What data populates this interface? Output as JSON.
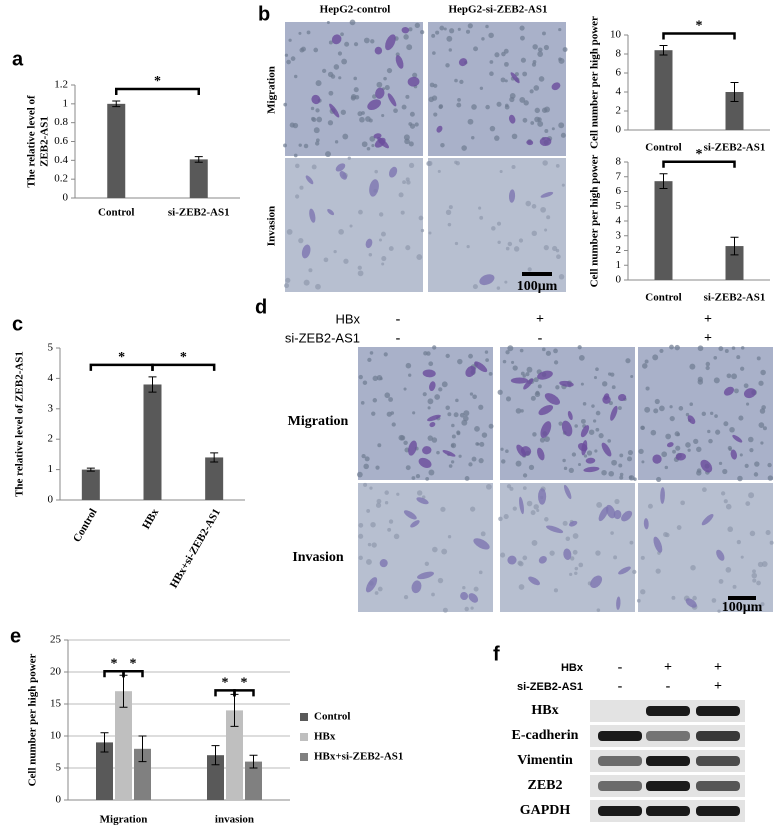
{
  "panel_labels": [
    "a",
    "b",
    "c",
    "d",
    "e",
    "f"
  ],
  "chart_data": [
    {
      "type": "bar",
      "ylabel": [
        "The relative level of",
        "ZEB2-AS1"
      ],
      "categories": [
        "Control",
        "si-ZEB2-AS1"
      ],
      "values": [
        1.0,
        0.41
      ],
      "errors": [
        0.03,
        0.03
      ],
      "color": "#595959",
      "ylim": [
        0,
        1.2
      ],
      "yticks": [
        0,
        0.2,
        0.4,
        0.6,
        0.8,
        1,
        1.2
      ],
      "significance": [
        {
          "label": "*",
          "between": [
            "Control",
            "si-ZEB2-AS1"
          ]
        }
      ]
    },
    {
      "type": "bar",
      "ylabel": "Cell number per high power",
      "categories": [
        "Control",
        "si-ZEB2-AS1"
      ],
      "values": [
        8.4,
        4.0
      ],
      "errors": [
        0.5,
        1.0
      ],
      "color": "#595959",
      "ylim": [
        0,
        10
      ],
      "yticks": [
        0,
        2,
        4,
        6,
        8,
        10
      ],
      "significance": [
        {
          "label": "*",
          "between": [
            "Control",
            "si-ZEB2-AS1"
          ]
        }
      ]
    },
    {
      "type": "bar",
      "ylabel": "Cell number per high power",
      "categories": [
        "Control",
        "si-ZEB2-AS1"
      ],
      "values": [
        6.7,
        2.3
      ],
      "errors": [
        0.5,
        0.6
      ],
      "color": "#595959",
      "ylim": [
        0,
        8
      ],
      "yticks": [
        0,
        1,
        2,
        3,
        4,
        5,
        6,
        7,
        8
      ],
      "significance": [
        {
          "label": "*",
          "between": [
            "Control",
            "si-ZEB2-AS1"
          ]
        }
      ]
    },
    {
      "type": "bar",
      "ylabel": "The relative level of ZEB2-AS1",
      "categories": [
        "Control",
        "HBx",
        "HBx+si-ZEB2-AS1"
      ],
      "values": [
        1.0,
        3.8,
        1.4
      ],
      "errors": [
        0.05,
        0.25,
        0.15
      ],
      "color": "#595959",
      "ylim": [
        0,
        5
      ],
      "yticks": [
        0,
        1,
        2,
        3,
        4,
        5
      ],
      "significance": [
        {
          "label": "*",
          "between": [
            "Control",
            "HBx"
          ]
        },
        {
          "label": "*",
          "between": [
            "HBx",
            "HBx+si-ZEB2-AS1"
          ]
        }
      ]
    },
    {
      "type": "grouped_bar",
      "ylabel": "Cell number per high power",
      "categories": [
        "Migration",
        "invasion"
      ],
      "series": [
        {
          "name": "Control",
          "color": "#595959",
          "values": [
            9,
            7
          ],
          "errors": [
            1.5,
            1.5
          ]
        },
        {
          "name": "HBx",
          "color": "#bfbfbf",
          "values": [
            17,
            14
          ],
          "errors": [
            2.5,
            2.5
          ]
        },
        {
          "name": "HBx+si-ZEB2-AS1",
          "color": "#808080",
          "values": [
            8,
            6
          ],
          "errors": [
            2,
            1
          ]
        }
      ],
      "ylim": [
        0,
        25
      ],
      "yticks": [
        0,
        5,
        10,
        15,
        20,
        25
      ],
      "grid": true,
      "legend": "right",
      "significance": [
        {
          "label": "*",
          "group": "Migration",
          "between": [
            "Control",
            "HBx"
          ]
        },
        {
          "label": "*",
          "group": "Migration",
          "between": [
            "HBx",
            "HBx+si-ZEB2-AS1"
          ]
        },
        {
          "label": "*",
          "group": "invasion",
          "between": [
            "Control",
            "HBx"
          ]
        },
        {
          "label": "*",
          "group": "invasion",
          "between": [
            "HBx",
            "HBx+si-ZEB2-AS1"
          ]
        }
      ]
    }
  ],
  "figure_b": {
    "columns": [
      "HepG2-control",
      "HepG2-si-ZEB2-AS1"
    ],
    "rows": [
      "Migration",
      "Invasion"
    ],
    "scale_bar": "100μm"
  },
  "figure_d": {
    "conditions": [
      {
        "label": "HBx",
        "signs": [
          "-",
          "+",
          "+"
        ]
      },
      {
        "label": "si-ZEB2-AS1",
        "signs": [
          "-",
          "-",
          "+"
        ]
      }
    ],
    "rows": [
      "Migration",
      "Invasion"
    ],
    "scale_bar": "100μm"
  },
  "figure_f": {
    "conditions": [
      {
        "label": "HBx",
        "signs": [
          "-",
          "+",
          "+"
        ]
      },
      {
        "label": "si-ZEB2-AS1",
        "signs": [
          "-",
          "-",
          "+"
        ]
      }
    ],
    "rows": [
      "HBx",
      "E-cadherin",
      "Vimentin",
      "ZEB2",
      "GAPDH"
    ]
  }
}
